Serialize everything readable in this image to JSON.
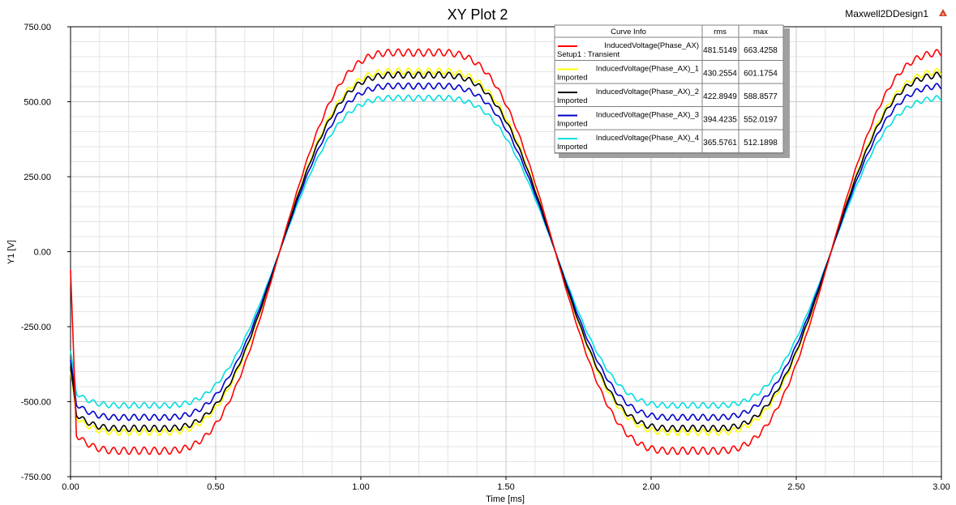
{
  "title": "XY Plot 2",
  "design_name": "Maxwell2DDesign1",
  "design_icon": "maxwell-logo-icon",
  "chart_data": {
    "type": "line",
    "title": "XY Plot 2",
    "xlabel": "Time [ms]",
    "ylabel": "Y1 [V]",
    "xlim": [
      0,
      3
    ],
    "ylim": [
      -750,
      750
    ],
    "xticks": [
      0,
      0.5,
      1.0,
      1.5,
      2.0,
      2.5,
      3.0
    ],
    "xtick_labels": [
      "0.00",
      "0.50",
      "1.00",
      "1.50",
      "2.00",
      "2.50",
      "3.00"
    ],
    "yticks": [
      750,
      500,
      250,
      0,
      -250,
      -500,
      -750
    ],
    "ytick_labels": [
      "750.00",
      "500.00",
      "250.00",
      "0.00",
      "-250.00",
      "-500.00",
      "-750.00"
    ],
    "grid": true,
    "legend_position": "top-right",
    "series": [
      {
        "name": "InducedVoltage(Phase_AX)",
        "sub": "Setup1 : Transient",
        "color": "#ff0000",
        "rms": "481.5149",
        "max": "663.4258",
        "amplitude": 663.4258,
        "start": -60
      },
      {
        "name": "InducedVoltage(Phase_AX)_1",
        "sub": "Imported",
        "color": "#ffff00",
        "rms": "430.2554",
        "max": "601.1754",
        "amplitude": 601.1754,
        "start": -400
      },
      {
        "name": "InducedVoltage(Phase_AX)_2",
        "sub": "Imported",
        "color": "#000000",
        "rms": "422.8949",
        "max": "588.8577",
        "amplitude": 588.8577,
        "start": -385
      },
      {
        "name": "InducedVoltage(Phase_AX)_3",
        "sub": "Imported",
        "color": "#0000cc",
        "rms": "394.4235",
        "max": "552.0197",
        "amplitude": 552.0197,
        "start": -360
      },
      {
        "name": "InducedVoltage(Phase_AX)_4",
        "sub": "Imported",
        "color": "#00e0e0",
        "rms": "365.5761",
        "max": "512.1898",
        "amplitude": 512.1898,
        "start": -330
      }
    ],
    "waveform": {
      "zero_crossings_ms": [
        0.72,
        1.68,
        2.62
      ],
      "period_ms": 1.9
    }
  },
  "legend": {
    "header_curve": "Curve Info",
    "header_rms": "rms",
    "header_max": "max"
  }
}
